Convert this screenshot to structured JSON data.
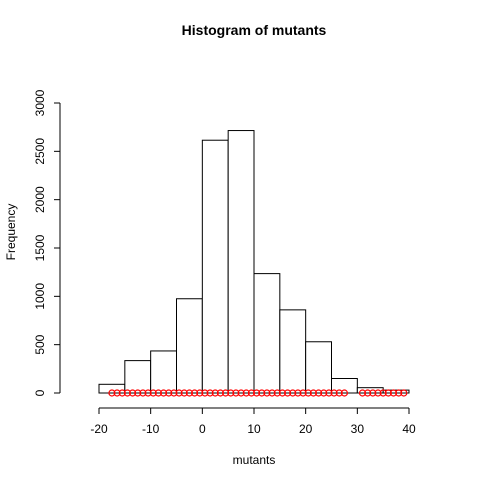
{
  "chart_data": {
    "type": "bar",
    "title": "Histogram of mutants",
    "xlabel": "mutants",
    "ylabel": "Frequency",
    "xlim": [
      -20,
      40
    ],
    "ylim": [
      0,
      3000
    ],
    "x_ticks": [
      -20,
      -10,
      0,
      10,
      20,
      30,
      40
    ],
    "y_ticks": [
      0,
      500,
      1000,
      1500,
      2000,
      2500,
      3000
    ],
    "bins": [
      {
        "start": -20,
        "end": -15,
        "count": 90
      },
      {
        "start": -15,
        "end": -10,
        "count": 335
      },
      {
        "start": -10,
        "end": -5,
        "count": 435
      },
      {
        "start": -5,
        "end": 0,
        "count": 975
      },
      {
        "start": 0,
        "end": 5,
        "count": 2615
      },
      {
        "start": 5,
        "end": 10,
        "count": 2715
      },
      {
        "start": 10,
        "end": 15,
        "count": 1235
      },
      {
        "start": 15,
        "end": 20,
        "count": 860
      },
      {
        "start": 20,
        "end": 25,
        "count": 530
      },
      {
        "start": 25,
        "end": 30,
        "count": 150
      },
      {
        "start": 30,
        "end": 35,
        "count": 55
      },
      {
        "start": 35,
        "end": 40,
        "count": 30
      }
    ],
    "rug_points": [
      -17.5,
      -16.5,
      -15.5,
      -14.5,
      -13.5,
      -12.5,
      -11.5,
      -10.5,
      -9.5,
      -8.5,
      -7.5,
      -6.5,
      -5.5,
      -4.5,
      -3.5,
      -2.5,
      -1.5,
      -0.5,
      0.5,
      1.5,
      2.5,
      3.5,
      4.5,
      5.5,
      6.5,
      7.5,
      8.5,
      9.5,
      10.5,
      11.5,
      12.5,
      13.5,
      14.5,
      15.5,
      16.5,
      17.5,
      18.5,
      19.5,
      20.5,
      21.5,
      22.5,
      23.5,
      24.5,
      25.5,
      26.5,
      27.5,
      31,
      32,
      33,
      34,
      35,
      36,
      37,
      38,
      39
    ],
    "colors": {
      "bar_fill": "#ffffff",
      "bar_stroke": "#000000",
      "rug": "#ff0000"
    }
  }
}
